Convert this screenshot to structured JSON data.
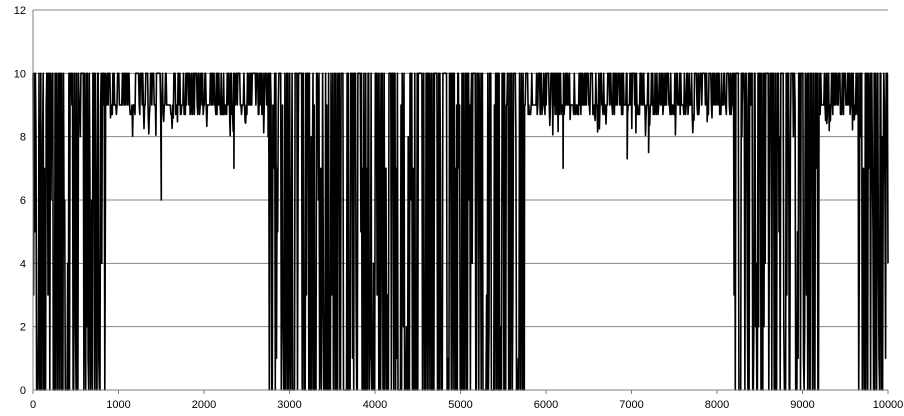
{
  "chart_data": {
    "type": "line",
    "title": "",
    "xlabel": "",
    "ylabel": "",
    "xlim": [
      0,
      10000
    ],
    "ylim": [
      0,
      12
    ],
    "x_ticks": [
      0,
      1000,
      2000,
      3000,
      4000,
      5000,
      6000,
      7000,
      8000,
      9000,
      10000
    ],
    "y_ticks": [
      0,
      2,
      4,
      6,
      8,
      10,
      12
    ],
    "grid": "horizontal",
    "legend": "none",
    "series": [
      {
        "name": "",
        "color": "#000000",
        "segments": [
          {
            "x_start": 0,
            "x_end": 850,
            "pattern": "oscillating",
            "min": 0,
            "max": 10
          },
          {
            "x_start": 850,
            "x_end": 2750,
            "pattern": "high-band",
            "min": 8,
            "max": 10
          },
          {
            "x_start": 2750,
            "x_end": 5750,
            "pattern": "oscillating",
            "min": 0,
            "max": 10
          },
          {
            "x_start": 5750,
            "x_end": 8200,
            "pattern": "high-band",
            "min": 8,
            "max": 10
          },
          {
            "x_start": 8200,
            "x_end": 9200,
            "pattern": "oscillating",
            "min": 0,
            "max": 10
          },
          {
            "x_start": 9200,
            "x_end": 9650,
            "pattern": "high-band",
            "min": 8,
            "max": 10
          },
          {
            "x_start": 9650,
            "x_end": 10000,
            "pattern": "oscillating",
            "min": 0,
            "max": 10
          }
        ],
        "dips": [
          {
            "x": 1500,
            "y": 6
          },
          {
            "x": 2350,
            "y": 7
          },
          {
            "x": 6200,
            "y": 7
          },
          {
            "x": 6950,
            "y": 7.3
          },
          {
            "x": 7200,
            "y": 7.5
          }
        ],
        "end_value": 4
      }
    ]
  }
}
